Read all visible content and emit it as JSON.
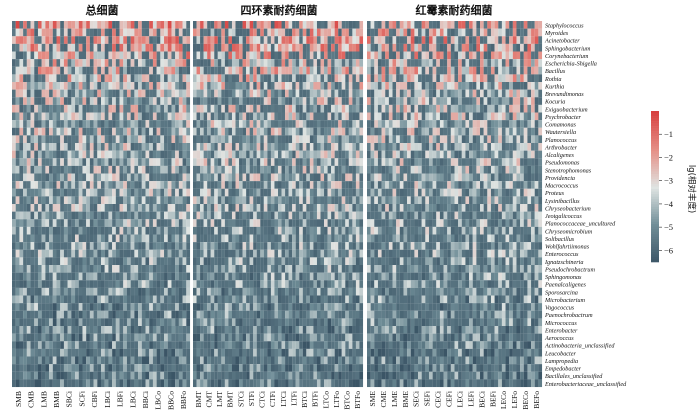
{
  "chart_data": {
    "type": "heatmap",
    "panels": [
      {
        "title": "总细菌",
        "samples": [
          "SMB",
          "CMB",
          "LMB",
          "BMB",
          "SBCi",
          "SCFi",
          "CBFi",
          "LBCi",
          "LBFi",
          "LBCi",
          "BBCi",
          "LBCo",
          "BBCo",
          "BBFo"
        ]
      },
      {
        "title": "四环素耐药细菌",
        "samples": [
          "BMT",
          "CMT",
          "LMT",
          "BMT",
          "STCi",
          "STFi",
          "CTCi",
          "CTFi",
          "LTCi",
          "LTFi",
          "BTCi",
          "BTFi",
          "LTCo",
          "LTFo",
          "BTCo",
          "BTFo"
        ]
      },
      {
        "title": "红霉素耐药细菌",
        "samples": [
          "SME",
          "CME",
          "LME",
          "BME",
          "SECi",
          "SEFi",
          "CECi",
          "CEFi",
          "LECi",
          "LEFi",
          "BECi",
          "BEFi",
          "LECo",
          "LEFo",
          "BECo",
          "BEFo"
        ]
      }
    ],
    "genera": [
      "Staphylococcus",
      "Myroides",
      "Acinetobacter",
      "Sphingobacterium",
      "Corynebacterium",
      "Escherichia-Shigella",
      "Bacillus",
      "Rothia",
      "Kurthia",
      "Brevundimonas",
      "Kocuria",
      "Exiguobacterium",
      "Psychrobacter",
      "Comamonas",
      "Wautersiella",
      "Planococcus",
      "Arthrobacter",
      "Alcaligenes",
      "Pseudomonas",
      "Stenotrophomonas",
      "Providencia",
      "Macrococcus",
      "Proteus",
      "Lysinibacillus",
      "Chryseobacterium",
      "Jeotgalicoccus",
      "Planococcaceae_uncultured",
      "Chryseomicrobium",
      "Solibacillus",
      "Wohlfahrtiimonas",
      "Enterococcus",
      "Ignatzschineria",
      "Pseudochrobactrum",
      "Sphingomonas",
      "Paenalcaligenes",
      "Sporosarcina",
      "Microbacterium",
      "Vagococcus",
      "Paenochrobactrum",
      "Micrococcus",
      "Enterobacter",
      "Aerococcus",
      "Actinobacteria_unclassified",
      "Leucobacter",
      "Lampropedia",
      "Empedobacter",
      "Bacillales_unclassified",
      "Enterobacteriaceae_unclassified"
    ],
    "columns_per_panel": 48,
    "colorbar": {
      "label": "lg(相对丰度)",
      "ticks": [
        -1,
        -2,
        -3,
        -4,
        -5,
        -6
      ],
      "range": [
        -6.5,
        0
      ],
      "colors": [
        "#3b5566",
        "#6f8d97",
        "#dfe4e2",
        "#e58f86",
        "#d7403f"
      ]
    },
    "value_model": {
      "baseline": -6,
      "row_mean": [
        -1.8,
        -2.4,
        -2.0,
        -2.2,
        -2.3,
        -2.9,
        -2.7,
        -2.8,
        -3.3,
        -3.4,
        -3.4,
        -3.5,
        -3.6,
        -3.7,
        -3.7,
        -3.8,
        -3.8,
        -3.9,
        -3.9,
        -4.0,
        -4.0,
        -4.1,
        -4.1,
        -4.2,
        -4.2,
        -4.3,
        -4.3,
        -4.4,
        -4.4,
        -4.5,
        -4.5,
        -4.6,
        -4.6,
        -4.7,
        -4.7,
        -4.8,
        -4.8,
        -4.9,
        -4.9,
        -5.0,
        -5.0,
        -5.1,
        -5.1,
        -5.2,
        -5.2,
        -5.3,
        -5.3,
        -5.4
      ]
    }
  }
}
